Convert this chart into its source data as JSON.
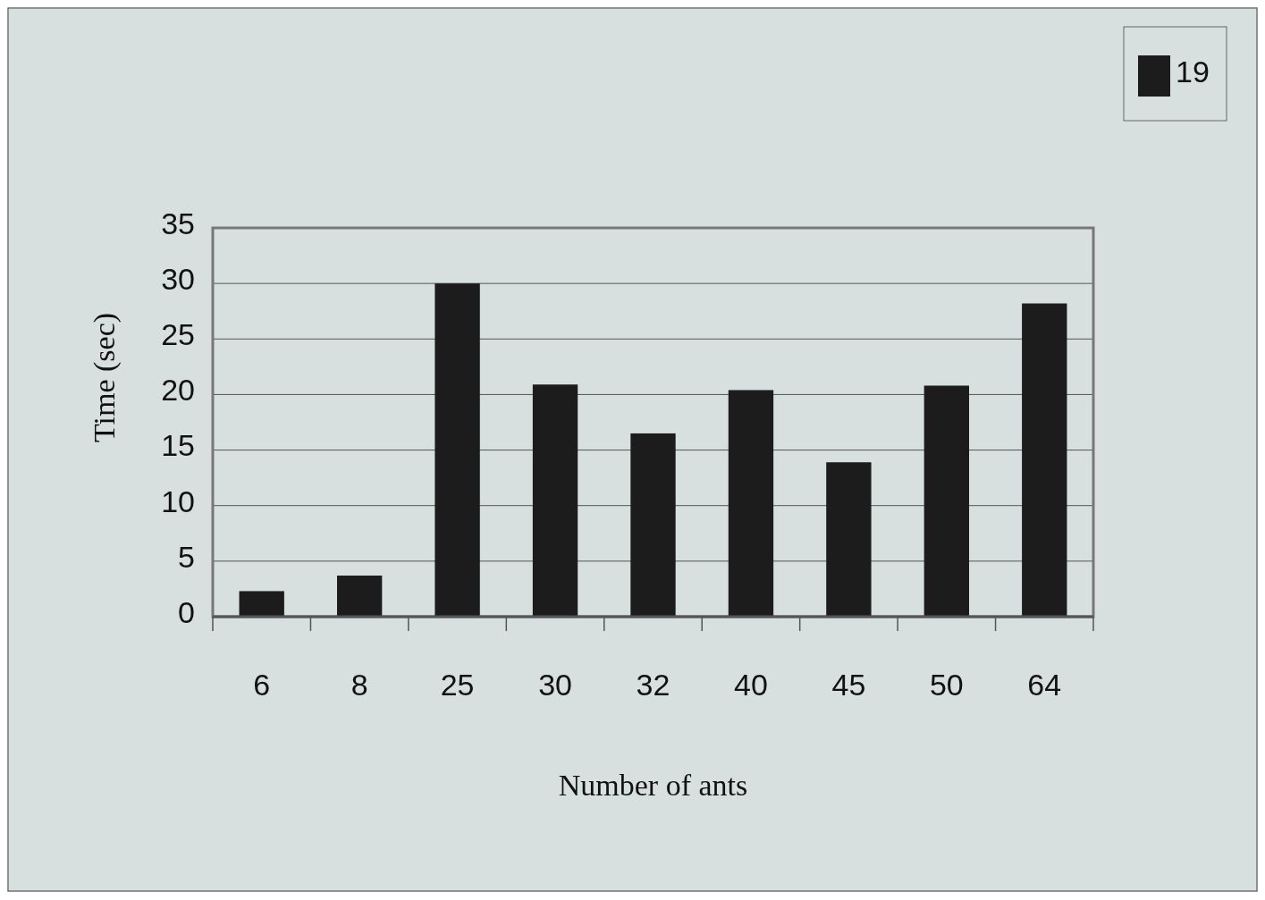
{
  "chart_data": {
    "type": "bar",
    "xlabel": "Number of ants",
    "ylabel": "Time (sec)",
    "categories": [
      "6",
      "8",
      "25",
      "30",
      "32",
      "40",
      "45",
      "50",
      "64"
    ],
    "series": [
      {
        "name": "19",
        "color": "#1c1c1c",
        "values": [
          2.3,
          3.7,
          30,
          20.9,
          16.5,
          20.4,
          13.9,
          20.8,
          28.2
        ]
      }
    ],
    "ylim": [
      0,
      35
    ],
    "yticks": [
      0,
      5,
      10,
      15,
      20,
      25,
      30,
      35
    ],
    "grid": "y",
    "legend": "top right"
  }
}
